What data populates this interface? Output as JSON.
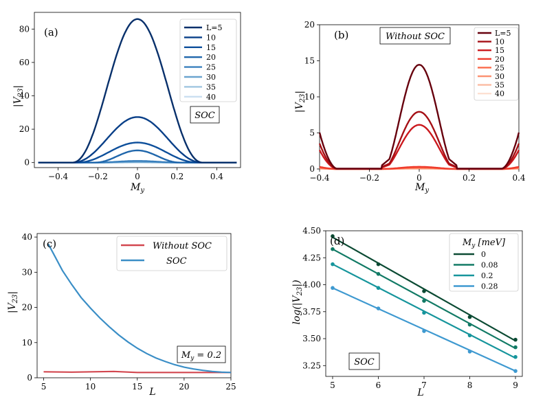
{
  "chart_data": [
    {
      "id": "a",
      "type": "line",
      "panel_label": "(a)",
      "xlabel": "M_y",
      "ylabel": "|V_23|",
      "xlim": [
        -0.52,
        0.52
      ],
      "ylim": [
        -3,
        90
      ],
      "xticks": [
        -0.4,
        -0.2,
        0,
        0.2,
        0.4
      ],
      "xtick_labels": [
        "−0.4",
        "−0.2",
        "0",
        "0.2",
        "0.4"
      ],
      "yticks": [
        0,
        20,
        40,
        60,
        80
      ],
      "ytick_labels": [
        "0",
        "20",
        "40",
        "60",
        "80"
      ],
      "annotation": "SOC",
      "legend_position": "top-right",
      "series": [
        {
          "name": "L=5",
          "color": "#08306b",
          "peak": 86,
          "width": 0.33
        },
        {
          "name": "10",
          "color": "#083f88",
          "peak": 27.3,
          "width": 0.33
        },
        {
          "name": "15",
          "color": "#0d4f9b",
          "peak": 12,
          "width": 0.31
        },
        {
          "name": "20",
          "color": "#1f66ab",
          "peak": 7.3,
          "width": 0.22
        },
        {
          "name": "25",
          "color": "#3a80bd",
          "peak": 1.0,
          "width": 0.22
        },
        {
          "name": "30",
          "color": "#6aa4cf",
          "peak": 0.4,
          "width": 0.22
        },
        {
          "name": "35",
          "color": "#9fc5e0",
          "peak": 0.2,
          "width": 0.22
        },
        {
          "name": "40",
          "color": "#cadff0",
          "peak": 0.1,
          "width": 0.22
        }
      ]
    },
    {
      "id": "b",
      "type": "line",
      "panel_label": "(b)",
      "xlabel": "M_y",
      "ylabel": "|V_23|",
      "xlim": [
        -0.4,
        0.4
      ],
      "ylim": [
        0,
        20
      ],
      "xticks": [
        -0.4,
        -0.2,
        0,
        0.2,
        0.4
      ],
      "xtick_labels": [
        "−0.4",
        "−0.2",
        "0",
        "0.2",
        "0.4"
      ],
      "yticks": [
        0,
        5,
        10,
        15,
        20
      ],
      "ytick_labels": [
        "0",
        "5",
        "10",
        "15",
        "20"
      ],
      "annotation": "Without SOC",
      "legend_position": "top-right",
      "series": [
        {
          "name": "L=5",
          "color": "#67000d",
          "peak": 14.4,
          "edge": 5.0
        },
        {
          "name": "10",
          "color": "#a50f15",
          "peak": 7.9,
          "edge": 3.5
        },
        {
          "name": "15",
          "color": "#cb181d",
          "peak": 6.1,
          "edge": 2.6
        },
        {
          "name": "20",
          "color": "#ef3b2c",
          "peak": 0.3,
          "edge": 0.3
        },
        {
          "name": "25",
          "color": "#fb6a4a",
          "peak": 0.2,
          "edge": 0.2
        },
        {
          "name": "30",
          "color": "#fc9272",
          "peak": 0.1,
          "edge": 0.1
        },
        {
          "name": "35",
          "color": "#fcbba1",
          "peak": 0.05,
          "edge": 0.05
        },
        {
          "name": "40",
          "color": "#fde0d2",
          "peak": 0.02,
          "edge": 0.02
        }
      ]
    },
    {
      "id": "c",
      "type": "line",
      "panel_label": "(c)",
      "xlabel": "L",
      "ylabel": "|V_23|",
      "xlim": [
        4.3,
        25
      ],
      "ylim": [
        0,
        41
      ],
      "xticks": [
        5,
        10,
        15,
        20,
        25
      ],
      "xtick_labels": [
        "5",
        "10",
        "15",
        "20",
        "25"
      ],
      "yticks": [
        0,
        10,
        20,
        30,
        40
      ],
      "ytick_labels": [
        "0",
        "10",
        "20",
        "30",
        "40"
      ],
      "annotation": "M_y = 0.2",
      "legend_position": "top-right",
      "series": [
        {
          "name": "Without SOC",
          "color": "#d2474f",
          "x": [
            5,
            8,
            12.5,
            15,
            20,
            25
          ],
          "y": [
            1.7,
            1.6,
            1.8,
            1.5,
            1.5,
            1.5
          ]
        },
        {
          "name": "SOC",
          "color": "#3a8ec6",
          "x": [
            5.5,
            6,
            7,
            8,
            9,
            10,
            11,
            12,
            13,
            14,
            15,
            16,
            17,
            18,
            19,
            20,
            21,
            22,
            23,
            24,
            25
          ],
          "y": [
            38,
            35.5,
            30.5,
            26.5,
            22.8,
            19.8,
            17.0,
            14.5,
            12.2,
            10.2,
            8.4,
            6.9,
            5.6,
            4.6,
            3.7,
            3.0,
            2.5,
            2.1,
            1.8,
            1.6,
            1.5
          ]
        }
      ]
    },
    {
      "id": "d",
      "type": "scatter",
      "panel_label": "(d)",
      "xlabel": "L",
      "ylabel": "log(|V_23|)",
      "xlim": [
        4.85,
        9.15
      ],
      "ylim": [
        3.15,
        4.5
      ],
      "xticks": [
        5,
        6,
        7,
        8,
        9
      ],
      "xtick_labels": [
        "5",
        "6",
        "7",
        "8",
        "9"
      ],
      "yticks": [
        3.25,
        3.5,
        3.75,
        4.0,
        4.25,
        4.5
      ],
      "ytick_labels": [
        "3.25",
        "3.50",
        "3.75",
        "4.00",
        "4.25",
        "4.50"
      ],
      "annotation": "SOC",
      "legend_title": "M_y [meV]",
      "legend_position": "top-right",
      "series": [
        {
          "name": "0",
          "color": "#0b4a33",
          "x": [
            5,
            6,
            7,
            8,
            9
          ],
          "y": [
            4.45,
            4.19,
            3.94,
            3.7,
            3.49
          ],
          "fit": [
            4.44,
            3.48
          ]
        },
        {
          "name": "0.08",
          "color": "#117a65",
          "x": [
            5,
            6,
            7,
            8,
            9
          ],
          "y": [
            4.33,
            4.1,
            3.85,
            3.63,
            3.42
          ],
          "fit": [
            4.33,
            3.41
          ]
        },
        {
          "name": "0.2",
          "color": "#16959c",
          "x": [
            5,
            6,
            7,
            8,
            9
          ],
          "y": [
            4.19,
            3.97,
            3.74,
            3.53,
            3.33
          ],
          "fit": [
            4.19,
            3.32
          ]
        },
        {
          "name": "0.28",
          "color": "#3e99d0",
          "x": [
            5,
            6,
            7,
            8,
            9
          ],
          "y": [
            3.97,
            3.78,
            3.57,
            3.38,
            3.2
          ],
          "fit": [
            3.97,
            3.2
          ]
        }
      ]
    }
  ]
}
